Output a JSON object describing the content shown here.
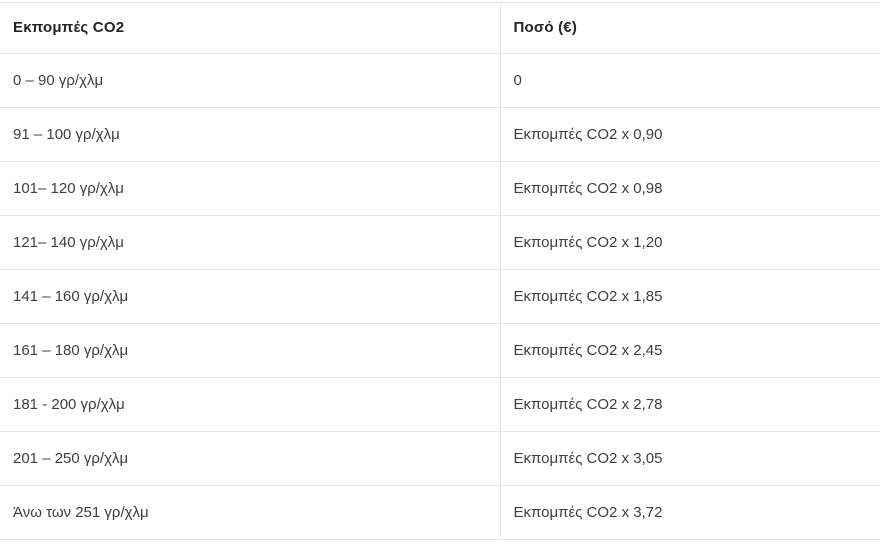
{
  "table": {
    "name": "co2-emissions-tax-table",
    "columns": [
      {
        "label": "Εκπομπές CO2"
      },
      {
        "label": "Ποσό (€)"
      }
    ],
    "rows": [
      {
        "emissions": "0 – 90 γρ/χλμ",
        "amount": "0"
      },
      {
        "emissions": "91 – 100 γρ/χλμ",
        "amount": "Εκπομπές CO2 x 0,90"
      },
      {
        "emissions": "101– 120 γρ/χλμ",
        "amount": "Εκπομπές CO2 x 0,98"
      },
      {
        "emissions": "121– 140 γρ/χλμ",
        "amount": "Εκπομπές CO2 x 1,20"
      },
      {
        "emissions": "141 – 160 γρ/χλμ",
        "amount": "Εκπομπές CO2 x 1,85"
      },
      {
        "emissions": "161 – 180 γρ/χλμ",
        "amount": "Εκπομπές CO2 x 2,45"
      },
      {
        "emissions": "181 - 200 γρ/χλμ",
        "amount": "Εκπομπές CO2 x 2,78"
      },
      {
        "emissions": "201 – 250 γρ/χλμ",
        "amount": "Εκπομπές CO2 x 3,05"
      },
      {
        "emissions": "Άνω των 251 γρ/χλμ",
        "amount": "Εκπομπές CO2 x 3,72"
      }
    ],
    "colors": {
      "border": "#e7e7e7",
      "header_text": "#212529",
      "body_text": "#3c4043",
      "background": "#ffffff"
    }
  }
}
